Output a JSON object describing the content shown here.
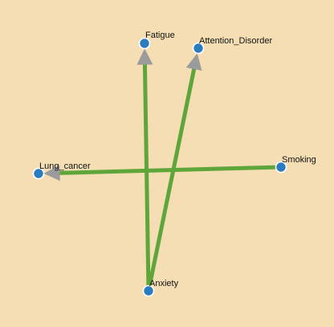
{
  "graph": {
    "nodes": [
      {
        "id": "fatigue",
        "label": "Fatigue"
      },
      {
        "id": "attention",
        "label": "Attention_Disorder"
      },
      {
        "id": "lung",
        "label": "Lung_cancer"
      },
      {
        "id": "smoking",
        "label": "Smoking"
      },
      {
        "id": "anxiety",
        "label": "Anxiety"
      }
    ],
    "edges": [
      {
        "id": "anxiety-fatigue",
        "from": "anxiety",
        "to": "fatigue"
      },
      {
        "id": "anxiety-attention",
        "from": "anxiety",
        "to": "attention"
      },
      {
        "id": "smoking-lung",
        "from": "smoking",
        "to": "lung"
      }
    ]
  },
  "colors": {
    "background": "#f5deb3",
    "edge": "#5ea53a",
    "arrow": "#9b9b9b",
    "node": "#2b7bbf",
    "node_stroke": "#ffffff",
    "label": "#111111"
  }
}
